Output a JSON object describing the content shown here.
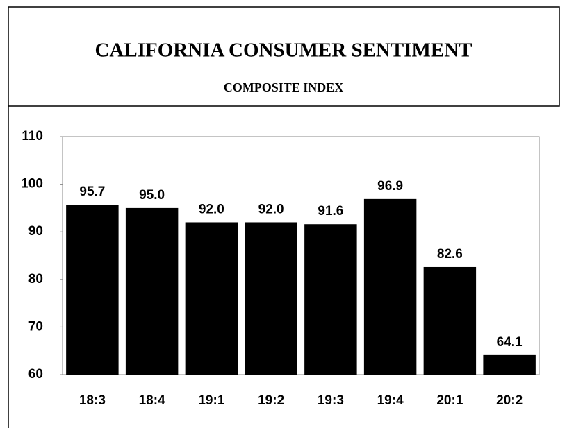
{
  "chart_data": {
    "type": "bar",
    "title": "CALIFORNIA CONSUMER SENTIMENT",
    "subtitle": "COMPOSITE INDEX",
    "categories": [
      "18:3",
      "18:4",
      "19:1",
      "19:2",
      "19:3",
      "19:4",
      "20:1",
      "20:2"
    ],
    "values": [
      95.7,
      95,
      92,
      92,
      91.6,
      96.9,
      82.6,
      64.1
    ],
    "value_labels": [
      "95.7",
      "95.0",
      "92.0",
      "92.0",
      "91.6",
      "96.9",
      "82.6",
      "64.1"
    ],
    "color": "#000000",
    "ylim": [
      60,
      110
    ],
    "yticks": [
      60,
      70,
      80,
      90,
      100,
      110
    ],
    "grid": false
  }
}
